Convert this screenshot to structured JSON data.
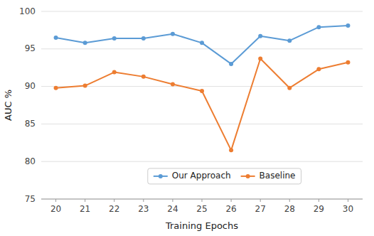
{
  "chart_data": {
    "type": "line",
    "x_label": "Training Epochs",
    "y_label": "AUC %",
    "x": [
      20,
      21,
      22,
      23,
      24,
      25,
      26,
      27,
      28,
      29,
      30
    ],
    "series": [
      {
        "name": "Our Approach",
        "color": "#5B9BD5",
        "marker": "circle",
        "values": [
          96.5,
          95.8,
          96.4,
          96.4,
          97.0,
          95.8,
          93.0,
          96.7,
          96.1,
          97.9,
          98.1
        ]
      },
      {
        "name": "Baseline",
        "color": "#ED7D31",
        "marker": "circle",
        "values": [
          89.8,
          90.1,
          91.9,
          91.3,
          90.3,
          89.4,
          81.5,
          93.7,
          89.8,
          92.3,
          93.2
        ]
      }
    ],
    "xlim": [
      19.5,
      30.5
    ],
    "xticks": [
      20,
      21,
      22,
      23,
      24,
      25,
      26,
      27,
      28,
      29,
      30
    ],
    "ylim": [
      75,
      100
    ],
    "yticks": [
      75,
      80,
      85,
      90,
      95,
      100
    ],
    "grid": "y",
    "legend": "lower center"
  }
}
